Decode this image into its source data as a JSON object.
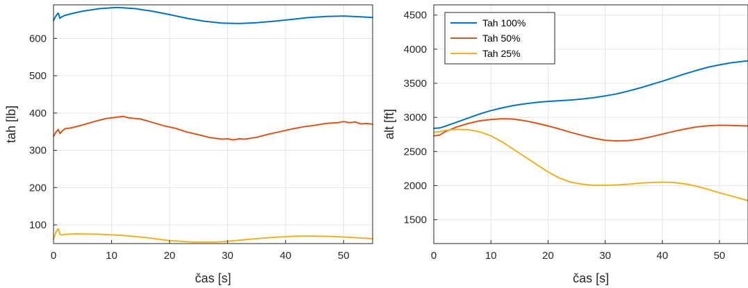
{
  "chart_data": [
    {
      "type": "line",
      "title": "",
      "xlabel": "čas [s]",
      "ylabel": "tah [lb]",
      "xlim": [
        0,
        55
      ],
      "ylim": [
        50,
        690
      ],
      "xticks": [
        0,
        10,
        20,
        30,
        40,
        50
      ],
      "yticks": [
        100,
        200,
        300,
        400,
        500,
        600
      ],
      "grid": true,
      "legend": null,
      "series": [
        {
          "color": "#0072BD",
          "x": [
            0,
            0.4,
            0.8,
            1.1,
            1.4,
            2,
            3,
            5,
            8,
            11,
            14,
            17,
            20,
            23,
            26,
            29,
            32,
            35,
            38,
            41,
            44,
            47,
            50,
            53,
            55
          ],
          "y": [
            648,
            660,
            668,
            654,
            658,
            662,
            666,
            673,
            680,
            683,
            680,
            673,
            664,
            654,
            646,
            641,
            640,
            642,
            646,
            651,
            656,
            659,
            660,
            658,
            656
          ]
        },
        {
          "color": "#D95319",
          "x": [
            0,
            0.4,
            0.8,
            1.1,
            1.5,
            2,
            3,
            5,
            7,
            9,
            11,
            12,
            13,
            15,
            17,
            19,
            21,
            23,
            25,
            27,
            29,
            30,
            31,
            32,
            33,
            35,
            37,
            39,
            41,
            43,
            45,
            47,
            49,
            50,
            51,
            52,
            53,
            54,
            55
          ],
          "y": [
            338,
            348,
            356,
            345,
            352,
            358,
            360,
            368,
            377,
            385,
            389,
            391,
            387,
            384,
            375,
            366,
            359,
            349,
            342,
            334,
            330,
            331,
            328,
            331,
            330,
            335,
            343,
            350,
            357,
            363,
            367,
            372,
            374,
            377,
            374,
            376,
            371,
            372,
            370
          ]
        },
        {
          "color": "#EDB120",
          "x": [
            0,
            0.4,
            0.8,
            1.1,
            1.5,
            2,
            4,
            8,
            12,
            16,
            20,
            24,
            26,
            28,
            30,
            34,
            38,
            42,
            45,
            48,
            51,
            55
          ],
          "y": [
            62,
            80,
            90,
            75,
            73,
            75,
            76,
            75,
            72,
            66,
            58,
            54,
            54,
            54,
            56,
            62,
            67,
            70,
            70,
            69,
            67,
            63
          ]
        }
      ]
    },
    {
      "type": "line",
      "title": "",
      "xlabel": "čas [s]",
      "ylabel": "alt [ft]",
      "xlim": [
        0,
        55
      ],
      "ylim": [
        1150,
        4650
      ],
      "xticks": [
        0,
        10,
        20,
        30,
        40,
        50
      ],
      "yticks": [
        1500,
        2000,
        2500,
        3000,
        3500,
        4000,
        4500
      ],
      "grid": true,
      "legend": "top-left",
      "series": [
        {
          "name": "Tah 100%",
          "color": "#0072BD",
          "x": [
            0,
            1,
            2,
            4,
            6,
            8,
            10,
            12,
            14,
            16,
            18,
            20,
            22,
            24,
            26,
            28,
            30,
            32,
            34,
            36,
            38,
            40,
            42,
            44,
            46,
            48,
            50,
            52,
            55
          ],
          "y": [
            2840,
            2845,
            2870,
            2930,
            2990,
            3050,
            3100,
            3140,
            3175,
            3200,
            3220,
            3235,
            3245,
            3255,
            3270,
            3290,
            3315,
            3345,
            3385,
            3430,
            3480,
            3530,
            3585,
            3640,
            3690,
            3735,
            3770,
            3800,
            3830
          ]
        },
        {
          "name": "Tah 50%",
          "color": "#D95319",
          "x": [
            0,
            1,
            2,
            4,
            6,
            8,
            10,
            12,
            14,
            16,
            18,
            20,
            22,
            24,
            26,
            28,
            30,
            32,
            34,
            36,
            38,
            40,
            42,
            44,
            46,
            48,
            50,
            52,
            55
          ],
          "y": [
            2730,
            2740,
            2790,
            2860,
            2910,
            2950,
            2970,
            2980,
            2975,
            2950,
            2915,
            2875,
            2830,
            2780,
            2735,
            2695,
            2665,
            2655,
            2660,
            2680,
            2715,
            2755,
            2795,
            2830,
            2860,
            2878,
            2885,
            2882,
            2875
          ]
        },
        {
          "name": "Tah 25%",
          "color": "#EDB120",
          "x": [
            0,
            1,
            2,
            4,
            6,
            8,
            10,
            12,
            14,
            16,
            18,
            20,
            22,
            24,
            26,
            28,
            30,
            32,
            34,
            36,
            38,
            40,
            42,
            44,
            46,
            48,
            50,
            52,
            55
          ],
          "y": [
            2780,
            2790,
            2810,
            2825,
            2820,
            2790,
            2730,
            2640,
            2530,
            2420,
            2310,
            2200,
            2110,
            2050,
            2020,
            2005,
            2005,
            2010,
            2020,
            2035,
            2045,
            2050,
            2045,
            2025,
            1990,
            1945,
            1895,
            1850,
            1780
          ]
        }
      ]
    }
  ]
}
